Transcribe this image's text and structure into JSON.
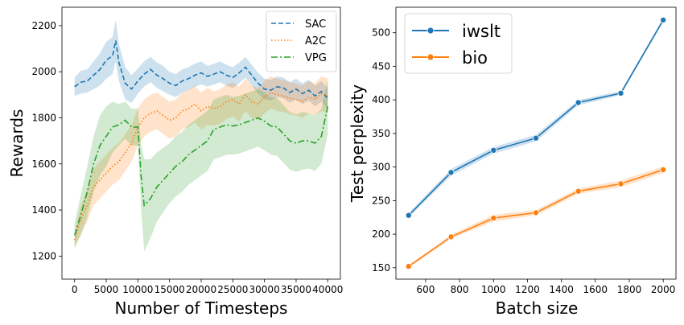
{
  "chart_data": [
    {
      "type": "line",
      "xlabel": "Number of Timesteps",
      "ylabel": "Rewards",
      "xlim": [
        -2000,
        42000
      ],
      "ylim": [
        1100,
        2280
      ],
      "xticks": [
        0,
        5000,
        10000,
        15000,
        20000,
        25000,
        30000,
        35000,
        40000
      ],
      "xtick_labels": [
        "0",
        "5000",
        "10000",
        "15000",
        "20000",
        "25000",
        "30000",
        "35000",
        "40000"
      ],
      "yticks": [
        1200,
        1400,
        1600,
        1800,
        2000,
        2200
      ],
      "ytick_labels": [
        "1200",
        "1400",
        "1600",
        "1800",
        "2000",
        "2200"
      ],
      "legend_position": "top-right",
      "series": [
        {
          "name": "SAC",
          "color": "#1f77b4",
          "dash": "dashed",
          "x": [
            0,
            1000,
            2000,
            3000,
            4000,
            5000,
            6000,
            6500,
            7000,
            8000,
            9000,
            10000,
            11000,
            12000,
            13000,
            14000,
            15000,
            16000,
            17000,
            18000,
            19000,
            20000,
            21000,
            22000,
            23000,
            24000,
            25000,
            26000,
            27000,
            28000,
            29000,
            30000,
            31000,
            32000,
            33000,
            34000,
            35000,
            36000,
            37000,
            38000,
            39000,
            40000
          ],
          "y": [
            1935,
            1955,
            1960,
            1985,
            2010,
            2050,
            2070,
            2135,
            2040,
            1950,
            1925,
            1960,
            1990,
            2010,
            1985,
            1970,
            1950,
            1940,
            1960,
            1970,
            1985,
            1995,
            1980,
            1990,
            2000,
            1985,
            1975,
            1995,
            2020,
            1985,
            1950,
            1925,
            1920,
            1935,
            1930,
            1910,
            1925,
            1905,
            1920,
            1895,
            1915,
            1885
          ],
          "band": [
            40,
            50,
            50,
            60,
            70,
            80,
            80,
            90,
            80,
            70,
            60,
            55,
            55,
            55,
            55,
            55,
            50,
            50,
            50,
            50,
            50,
            50,
            45,
            45,
            45,
            45,
            45,
            45,
            45,
            45,
            45,
            45,
            45,
            45,
            45,
            45,
            45,
            45,
            45,
            45,
            45,
            45
          ]
        },
        {
          "name": "A2C",
          "color": "#ff7f0e",
          "dash": "dotted",
          "x": [
            0,
            1000,
            2000,
            3000,
            4000,
            5000,
            6000,
            7000,
            8000,
            9000,
            10000,
            11000,
            12000,
            13000,
            14000,
            15000,
            16000,
            17000,
            18000,
            19000,
            20000,
            21000,
            22000,
            23000,
            24000,
            25000,
            26000,
            27000,
            28000,
            29000,
            30000,
            31000,
            32000,
            33000,
            34000,
            35000,
            36000,
            37000,
            38000,
            39000,
            40000
          ],
          "y": [
            1270,
            1360,
            1420,
            1500,
            1530,
            1560,
            1590,
            1610,
            1650,
            1690,
            1760,
            1800,
            1820,
            1830,
            1810,
            1790,
            1800,
            1830,
            1840,
            1860,
            1830,
            1850,
            1840,
            1850,
            1870,
            1880,
            1860,
            1900,
            1870,
            1860,
            1890,
            1910,
            1900,
            1895,
            1885,
            1880,
            1870,
            1890,
            1880,
            1905,
            1895
          ],
          "band": [
            40,
            60,
            70,
            80,
            80,
            80,
            80,
            80,
            80,
            80,
            80,
            80,
            80,
            80,
            80,
            80,
            80,
            80,
            80,
            80,
            80,
            80,
            75,
            75,
            75,
            75,
            75,
            70,
            70,
            70,
            70,
            70,
            70,
            70,
            70,
            70,
            70,
            70,
            70,
            75,
            75
          ]
        },
        {
          "name": "VPG",
          "color": "#2ca02c",
          "dash": "dashdot",
          "x": [
            0,
            1000,
            2000,
            3000,
            4000,
            5000,
            6000,
            7000,
            8000,
            9000,
            10000,
            10500,
            11000,
            12000,
            13000,
            14000,
            15000,
            16000,
            17000,
            18000,
            19000,
            20000,
            21000,
            22000,
            23000,
            24000,
            25000,
            26000,
            27000,
            28000,
            29000,
            30000,
            31000,
            32000,
            33000,
            34000,
            35000,
            36000,
            37000,
            38000,
            39000,
            40000
          ],
          "y": [
            1290,
            1380,
            1480,
            1600,
            1680,
            1720,
            1760,
            1770,
            1790,
            1760,
            1760,
            1550,
            1420,
            1450,
            1500,
            1530,
            1560,
            1590,
            1610,
            1640,
            1660,
            1680,
            1700,
            1750,
            1760,
            1770,
            1765,
            1770,
            1780,
            1790,
            1800,
            1785,
            1765,
            1760,
            1730,
            1700,
            1690,
            1700,
            1700,
            1690,
            1720,
            1850
          ],
          "band": [
            50,
            90,
            110,
            120,
            130,
            130,
            110,
            90,
            80,
            80,
            80,
            140,
            200,
            170,
            150,
            140,
            130,
            130,
            130,
            130,
            130,
            130,
            130,
            130,
            130,
            130,
            125,
            125,
            125,
            125,
            125,
            125,
            125,
            125,
            125,
            125,
            125,
            125,
            120,
            120,
            120,
            120
          ]
        }
      ]
    },
    {
      "type": "line",
      "xlabel": "Batch size",
      "ylabel": "Test perplexity",
      "xlim": [
        425,
        2075
      ],
      "ylim": [
        133,
        538
      ],
      "xticks": [
        600,
        800,
        1000,
        1200,
        1400,
        1600,
        1800,
        2000
      ],
      "xtick_labels": [
        "600",
        "800",
        "1000",
        "1200",
        "1400",
        "1600",
        "1800",
        "2000"
      ],
      "yticks": [
        150,
        200,
        250,
        300,
        350,
        400,
        450,
        500
      ],
      "ytick_labels": [
        "150",
        "200",
        "250",
        "300",
        "350",
        "400",
        "450",
        "500"
      ],
      "legend_position": "top-left",
      "series": [
        {
          "name": "iwslt",
          "color": "#1f77b4",
          "marker": "circle",
          "x": [
            500,
            750,
            1000,
            1250,
            1500,
            1750,
            2000
          ],
          "y": [
            228,
            292,
            325,
            343,
            396,
            410,
            519
          ],
          "band": [
            3,
            5,
            5,
            5,
            4,
            3,
            3
          ]
        },
        {
          "name": "bio",
          "color": "#ff7f0e",
          "marker": "circle",
          "x": [
            500,
            750,
            1000,
            1250,
            1500,
            1750,
            2000
          ],
          "y": [
            152,
            196,
            224,
            232,
            264,
            275,
            296
          ],
          "band": [
            2,
            3,
            5,
            4,
            4,
            5,
            5
          ]
        }
      ]
    }
  ]
}
